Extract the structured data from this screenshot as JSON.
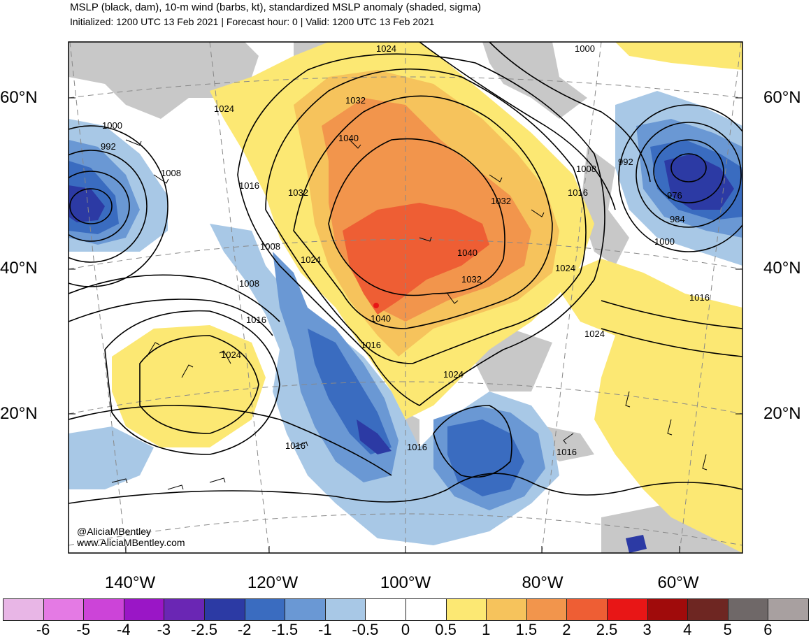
{
  "header": {
    "title": "MSLP (black, dam), 10-m wind (barbs, kt), standardized MSLP anomaly (shaded, sigma)",
    "subtitle": "Initialized: 1200 UTC 13 Feb 2021 | Forecast hour: 0 | Valid: 1200 UTC 13 Feb 2021"
  },
  "map": {
    "lat_labels": [
      "60°N",
      "40°N",
      "20°N"
    ],
    "lon_labels": [
      "140°W",
      "120°W",
      "100°W",
      "80°W",
      "60°W"
    ],
    "isobar_labels": [
      "1024",
      "1000",
      "1032",
      "1040",
      "1024",
      "1000",
      "992",
      "1008",
      "1016",
      "1032",
      "1032",
      "1008",
      "1008",
      "992",
      "976",
      "984",
      "1016",
      "1000",
      "1040",
      "1024",
      "1008",
      "1024",
      "1032",
      "1016",
      "1016",
      "1040",
      "1024",
      "1016",
      "1024",
      "1024",
      "1016",
      "1016",
      "1016"
    ],
    "colors": {
      "land_gray": "#c8c8c8",
      "isobar": "#000000",
      "grid_dashed": "#888888"
    }
  },
  "credits": {
    "handle": "@AliciaMBentley",
    "website": "www.AliciaMBentley.com"
  },
  "colorbar": {
    "labels": [
      "-6",
      "-5",
      "-4",
      "-3",
      "-2.5",
      "-2",
      "-1.5",
      "-1",
      "-0.5",
      "0",
      "0.5",
      "1",
      "1.5",
      "2",
      "2.5",
      "3",
      "4",
      "5",
      "6"
    ],
    "colors": [
      "#e8b6e6",
      "#e47ae4",
      "#cc44d8",
      "#9a16c6",
      "#6a26b4",
      "#2c3aa4",
      "#3a6cc0",
      "#6a98d4",
      "#a8c8e6",
      "#ffffff",
      "#ffffff",
      "#fce873",
      "#f6c35c",
      "#f2954c",
      "#ee5e34",
      "#e81616",
      "#a00b0b",
      "#6e2622",
      "#6f6868",
      "#a8a0a0"
    ]
  }
}
